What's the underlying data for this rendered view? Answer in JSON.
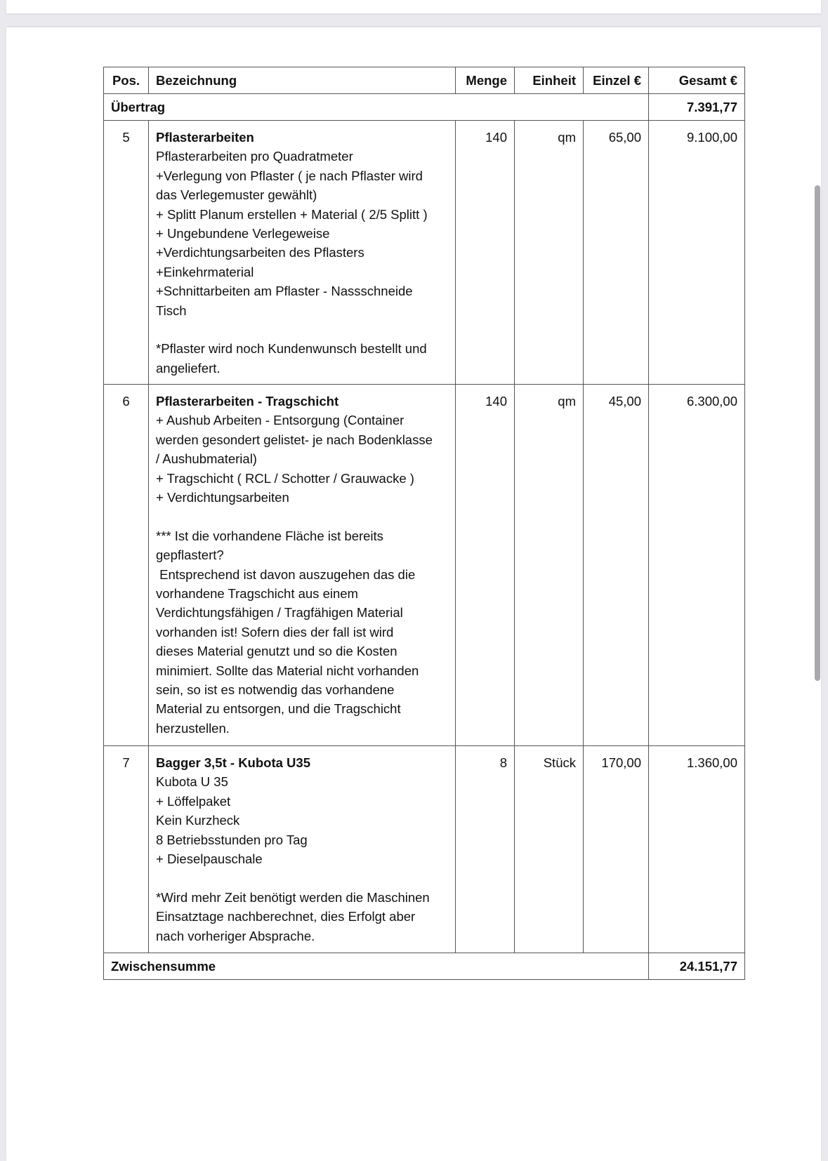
{
  "table": {
    "headers": {
      "pos": "Pos.",
      "bezeichnung": "Bezeichnung",
      "menge": "Menge",
      "einheit": "Einheit",
      "einzel": "Einzel €",
      "gesamt": "Gesamt €"
    },
    "uebertrag": {
      "label": "Übertrag",
      "value": "7.391,77"
    },
    "rows": [
      {
        "pos": "5",
        "title": "Pflasterarbeiten",
        "menge": "140",
        "einheit": "qm",
        "einzel": "65,00",
        "gesamt": "9.100,00",
        "lines": [
          "Pflasterarbeiten pro Quadratmeter",
          "+Verlegung von Pflaster ( je nach Pflaster wird",
          "das Verlegemuster gewählt)",
          "+ Splitt Planum erstellen + Material ( 2/5 Splitt )",
          "+ Ungebundene Verlegeweise",
          "+Verdichtungsarbeiten des Pflasters",
          "+Einkehrmaterial",
          "+Schnittarbeiten am Pflaster - Nassschneide",
          "Tisch",
          "",
          "*Pflaster wird noch Kundenwunsch bestellt und",
          "angeliefert."
        ]
      },
      {
        "pos": "6",
        "title": "Pflasterarbeiten - Tragschicht",
        "menge": "140",
        "einheit": "qm",
        "einzel": "45,00",
        "gesamt": "6.300,00",
        "lines": [
          "+ Aushub Arbeiten - Entsorgung (Container",
          "werden gesondert gelistet- je nach Bodenklasse",
          "/ Aushubmaterial)",
          "+ Tragschicht ( RCL / Schotter / Grauwacke )",
          "+ Verdichtungsarbeiten",
          "",
          "*** Ist die vorhandene Fläche ist bereits",
          "gepflastert?",
          " Entsprechend ist davon auszugehen das die",
          "vorhandene Tragschicht aus einem",
          "Verdichtungsfähigen / Tragfähigen Material",
          "vorhanden ist! Sofern dies der fall ist wird",
          "dieses Material genutzt und so die Kosten",
          "minimiert. Sollte das Material nicht vorhanden",
          "sein, so ist es notwendig das vorhandene",
          "Material zu entsorgen, und die Tragschicht",
          "herzustellen."
        ]
      },
      {
        "pos": "7",
        "title": "Bagger 3,5t - Kubota U35",
        "menge": "8",
        "einheit": "Stück",
        "einzel": "170,00",
        "gesamt": "1.360,00",
        "lines": [
          "Kubota U 35",
          "+ Löffelpaket",
          "Kein Kurzheck",
          "8 Betriebsstunden pro Tag",
          "+ Dieselpauschale",
          "",
          "*Wird mehr Zeit benötigt werden die Maschinen",
          "Einsatztage nachberechnet, dies Erfolgt aber",
          "nach vorheriger Absprache."
        ]
      }
    ],
    "zwischensumme": {
      "label": "Zwischensumme",
      "value": "24.151,77"
    }
  }
}
